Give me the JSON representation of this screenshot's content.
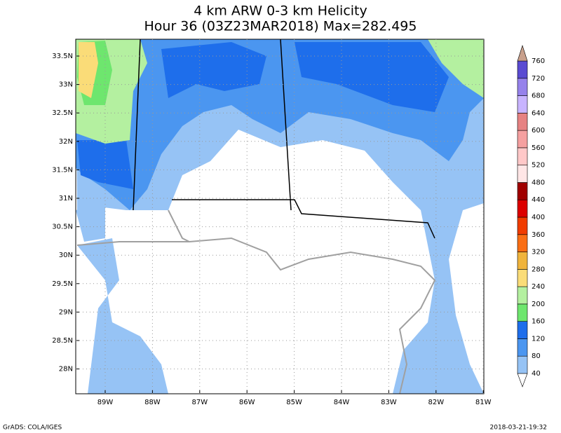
{
  "header": {
    "title": "4 km ARW 0-3 km Helicity",
    "subtitle": "Hour 36 (03Z23MAR2018) Max=282.495"
  },
  "map": {
    "lat_labels": [
      "33.5N",
      "33N",
      "32.5N",
      "32N",
      "31.5N",
      "31N",
      "30.5N",
      "30N",
      "29.5N",
      "29N",
      "28.5N",
      "28N"
    ],
    "lon_labels": [
      "89W",
      "88W",
      "87W",
      "86W",
      "85W",
      "84W",
      "83W",
      "82W",
      "81W"
    ]
  },
  "colorbar": {
    "levels": [
      40,
      80,
      120,
      160,
      200,
      240,
      280,
      320,
      360,
      400,
      440,
      480,
      520,
      560,
      600,
      640,
      680,
      720,
      760
    ],
    "colors": [
      "#ffffff",
      "#96c3f5",
      "#4b96f0",
      "#1e6eeb",
      "#6ee66e",
      "#b4f0a0",
      "#fadc78",
      "#f0b43c",
      "#fa6e14",
      "#f03c00",
      "#dc0000",
      "#a00000",
      "#ffe6e6",
      "#ffc8c8",
      "#f5a0a0",
      "#e68282",
      "#c8b4ff",
      "#9682eb",
      "#5a4bd2",
      "#c8a08c"
    ]
  },
  "footer": {
    "left": "GrADS: COLA/IGES",
    "right": "2018-03-21-19:32"
  }
}
